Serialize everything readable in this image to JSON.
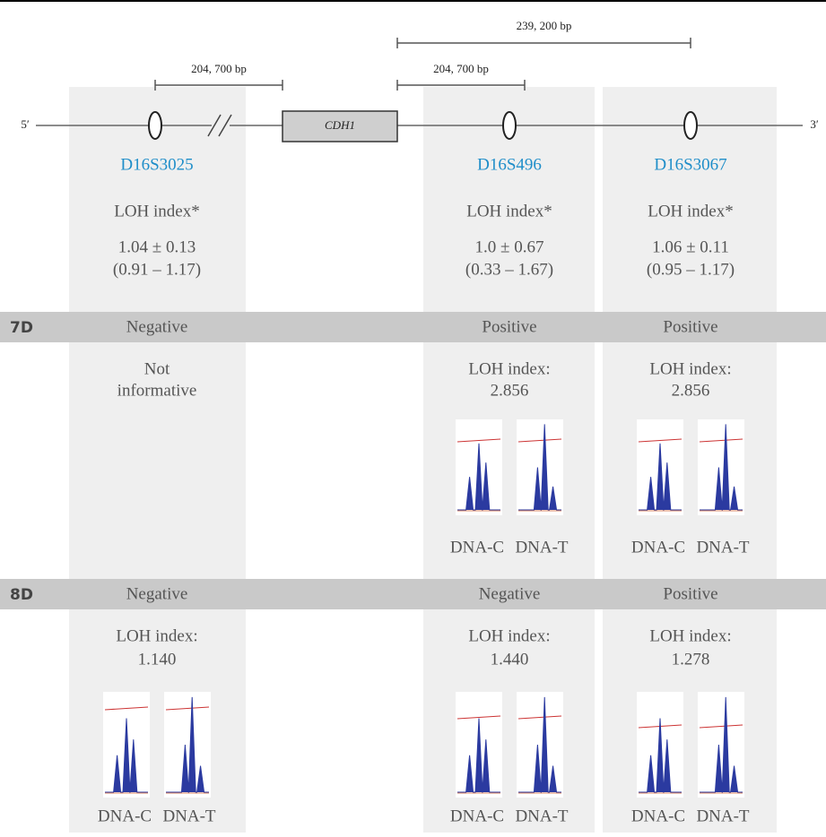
{
  "top_scale": {
    "left_span": "204, 700 bp",
    "mid_span": "204, 700 bp",
    "wide_span": "239, 200 bp"
  },
  "strand": {
    "five_prime": "5′",
    "three_prime": "3′",
    "gene": "CDH1"
  },
  "markers": [
    {
      "name": "D16S3025",
      "heading": "LOH index*",
      "mean": "1.04 ± 0.13",
      "range": "(0.91 – 1.17)"
    },
    {
      "name": "D16S496",
      "heading": "LOH index*",
      "mean": "1.0 ± 0.67",
      "range": "(0.33 – 1.67)"
    },
    {
      "name": "D16S3067",
      "heading": "LOH index*",
      "mean": "1.06 ± 0.11",
      "range": "(0.95 – 1.17)"
    }
  ],
  "rows": [
    {
      "label": "7D",
      "cells": [
        {
          "status": "Negative",
          "lines": [
            "Not",
            "informative"
          ]
        },
        {
          "status": "Positive",
          "lines": [
            "LOH index:",
            "2.856"
          ],
          "traces": [
            "DNA-C",
            "DNA-T"
          ]
        },
        {
          "status": "Positive",
          "lines": [
            "LOH index:",
            "2.856"
          ],
          "traces": [
            "DNA-C",
            "DNA-T"
          ]
        }
      ]
    },
    {
      "label": "8D",
      "cells": [
        {
          "status": "Negative",
          "lines": [
            "LOH index:",
            "1.140"
          ],
          "traces": [
            "DNA-C",
            "DNA-T"
          ]
        },
        {
          "status": "Negative",
          "lines": [
            "LOH index:",
            "1.440"
          ],
          "traces": [
            "DNA-C",
            "DNA-T"
          ]
        },
        {
          "status": "Positive",
          "lines": [
            "LOH index:",
            "1.278"
          ],
          "traces": [
            "DNA-C",
            "DNA-T"
          ]
        }
      ]
    }
  ]
}
